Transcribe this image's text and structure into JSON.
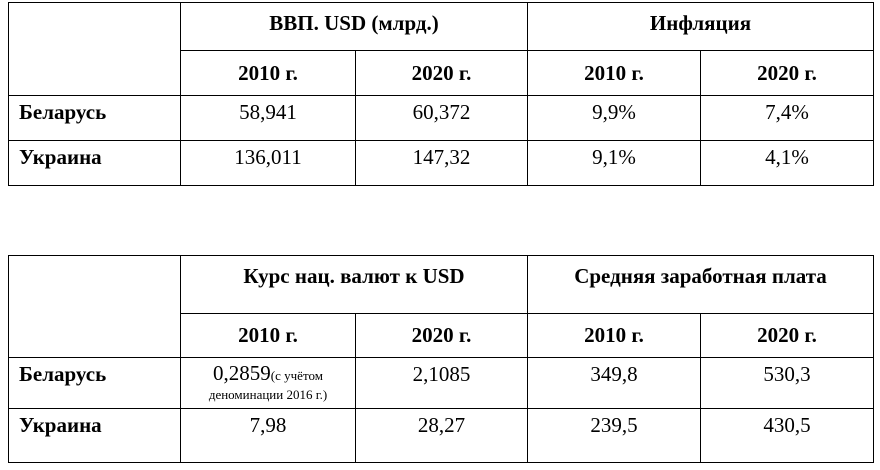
{
  "tables": [
    {
      "headers": [
        "ВВП. USD (млрд.)",
        "Инфляция"
      ],
      "years": [
        "2010 г.",
        "2020 г.",
        "2010 г.",
        "2020 г."
      ],
      "rows": [
        {
          "label": "Беларусь",
          "cells": [
            "58,941",
            "60,372",
            "9,9%",
            "7,4%"
          ]
        },
        {
          "label": "Украина",
          "cells": [
            "136,011",
            "147,32",
            "9,1%",
            "4,1%"
          ]
        }
      ]
    },
    {
      "headers": [
        "Курс нац. валют к USD",
        "Средняя заработная плата"
      ],
      "years": [
        "2010 г.",
        "2020 г.",
        "2010 г.",
        "2020 г."
      ],
      "rows": [
        {
          "label": "Беларусь",
          "cells": [
            "0,2859",
            "2,1085",
            "349,8",
            "530,3"
          ],
          "note_line1": "(с учётом",
          "note_line2": "деноминации 2016 г.)"
        },
        {
          "label": "Украина",
          "cells": [
            "7,98",
            "28,27",
            "239,5",
            "430,5"
          ]
        }
      ]
    }
  ]
}
